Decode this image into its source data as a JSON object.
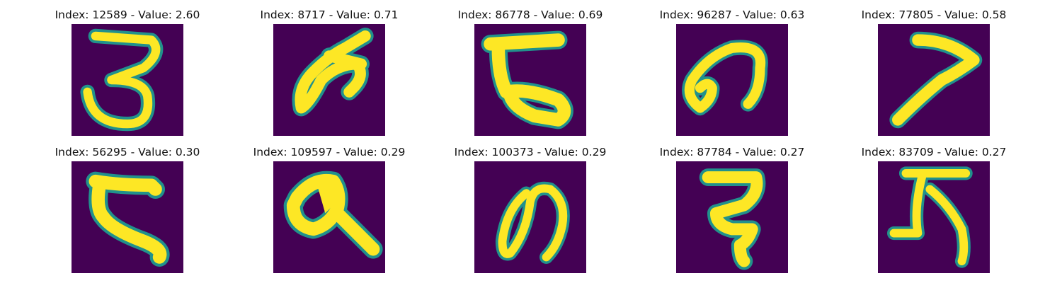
{
  "colors": {
    "background": "#440154",
    "mid": "#21918c",
    "stroke": "#fde725"
  },
  "panels": [
    {
      "title": "Index: 12589 - Value: 2.60"
    },
    {
      "title": "Index: 8717 - Value: 0.71"
    },
    {
      "title": "Index: 86778 - Value: 0.69"
    },
    {
      "title": "Index: 96287 - Value: 0.63"
    },
    {
      "title": "Index: 77805 - Value: 0.58"
    },
    {
      "title": "Index: 56295 - Value: 0.30"
    },
    {
      "title": "Index: 109597 - Value: 0.29"
    },
    {
      "title": "Index: 100373 - Value: 0.29"
    },
    {
      "title": "Index: 87784 - Value: 0.27"
    },
    {
      "title": "Index: 83709 - Value: 0.27"
    }
  ]
}
